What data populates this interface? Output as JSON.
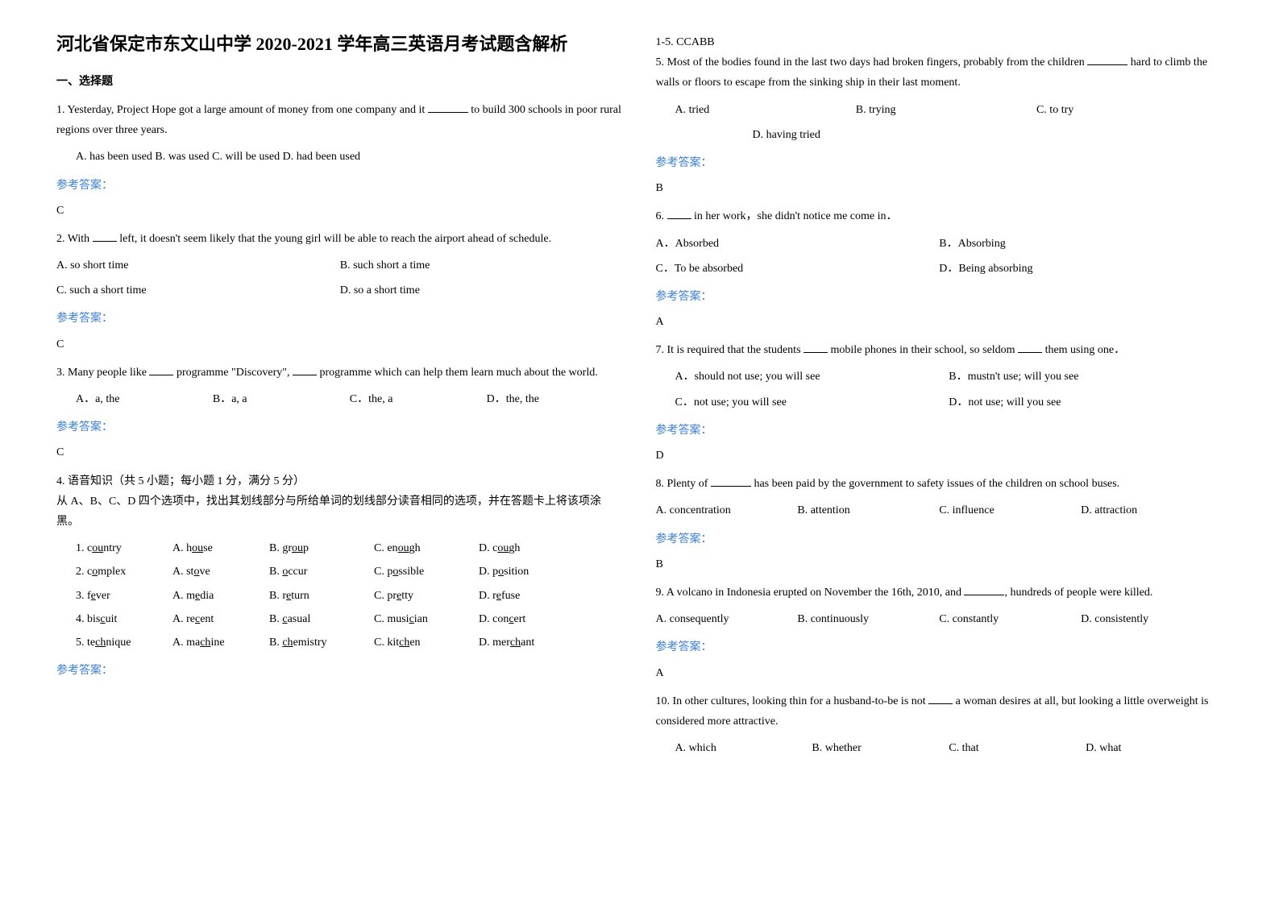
{
  "title": "河北省保定市东文山中学 2020-2021 学年高三英语月考试题含解析",
  "section1": "一、选择题",
  "answer_label": "参考答案：",
  "q1": {
    "text_a": "1. Yesterday, Project Hope got a large amount of money from one company and it ",
    "text_b": " to build 300 schools in poor rural regions over three years.",
    "opts": "A. has been used   B. was used   C. will be used   D. had been used",
    "ans": "C"
  },
  "q2": {
    "text_a": "2. With ",
    "text_b": " left, it doesn't seem likely that the young girl will be able to reach the airport ahead of schedule.",
    "oA": "A. so short time",
    "oB": "B. such short a time",
    "oC": "C. such a short time",
    "oD": "D. so a short time",
    "ans": "C"
  },
  "q3": {
    "text_a": "3. Many people like ",
    "text_b": " programme \"Discovery\", ",
    "text_c": " programme which can help them learn much about the world.",
    "oA": "A．a, the",
    "oB": "B．a, a",
    "oC": "C．the, a",
    "oD": "D．the, the",
    "ans": "C"
  },
  "q4": {
    "head": "4. 语音知识（共 5 小题；每小题 1 分，满分 5 分）",
    "instr": "从 A、B、C、D 四个选项中，找出其划线部分与所给单词的划线部分读音相同的选项，并在答题卡上将该项涂黑。",
    "rows": [
      [
        "1.  c<u>ou</u>ntry",
        "A.  h<u>ou</u>se",
        "B.  gr<u>ou</u>p",
        "C.  en<u>ou</u>gh",
        "D.  c<u>ou</u>gh"
      ],
      [
        "2.  c<u>o</u>mplex",
        "A.  st<u>o</u>ve",
        "B.  <u>o</u>ccur",
        "C.  p<u>o</u>ssible",
        "D.  p<u>o</u>sition"
      ],
      [
        "3.  f<u>e</u>ver",
        "A.  m<u>e</u>dia",
        "B.  r<u>e</u>turn",
        "C.  pr<u>e</u>tty",
        "D.  r<u>e</u>fuse"
      ],
      [
        "4.  bis<u>c</u>uit",
        "A.  re<u>c</u>ent",
        "B.  <u>c</u>asual",
        "C.  musi<u>c</u>ian",
        "D.  con<u>c</u>ert"
      ],
      [
        "5.  te<u>ch</u>nique",
        "A.  ma<u>ch</u>ine",
        "B.  <u>ch</u>emistry",
        "C.  kit<u>ch</u>en",
        "D.  mer<u>ch</u>ant"
      ]
    ],
    "ans_key": "1-5. CCABB"
  },
  "q5": {
    "text_a": "5. Most of the bodies found in the last two days had broken fingers, probably from the children ",
    "text_b": " hard to climb the walls or floors to escape from the sinking ship in their last moment.",
    "oA": "A. tried",
    "oB": "B. trying",
    "oC": "C. to try",
    "oD": "D. having tried",
    "ans": "B"
  },
  "q6": {
    "text_a": "6. ",
    "text_b": " in her work，she didn't notice me come in．",
    "oA": "A．Absorbed",
    "oB": "B．Absorbing",
    "oC": "C．To be absorbed",
    "oD": "D．Being absorbing",
    "ans": "A"
  },
  "q7": {
    "text_a": "7. It is required that the students ",
    "text_b": " mobile phones in their school, so seldom ",
    "text_c": " them using one．",
    "oA": "A．should not use; you will see",
    "oB": "B．mustn't use; will you see",
    "oC": "C．not use; you will see",
    "oD": "D．not use; will you see",
    "ans": "D"
  },
  "q8": {
    "text_a": "8. Plenty of ",
    "text_b": " has been paid by the government to safety issues of the children on school buses.",
    "oA": "A. concentration",
    "oB": "B. attention",
    "oC": "C. influence",
    "oD": "D. attraction",
    "ans": "B"
  },
  "q9": {
    "text_a": "9.  A volcano in Indonesia erupted on November the 16th, 2010, and ",
    "text_b": ", hundreds of people were killed.",
    "oA": "A. consequently",
    "oB": "B. continuously",
    "oC": "C. constantly",
    "oD": "D. consistently",
    "ans": "A"
  },
  "q10": {
    "text_a": "10.  In other cultures, looking thin for a husband-to-be is not ",
    "text_b": " a woman desires at all, but looking a little overweight is considered more attractive.",
    "oA": "A. which",
    "oB": "B. whether",
    "oC": "C. that",
    "oD": "D. what"
  }
}
